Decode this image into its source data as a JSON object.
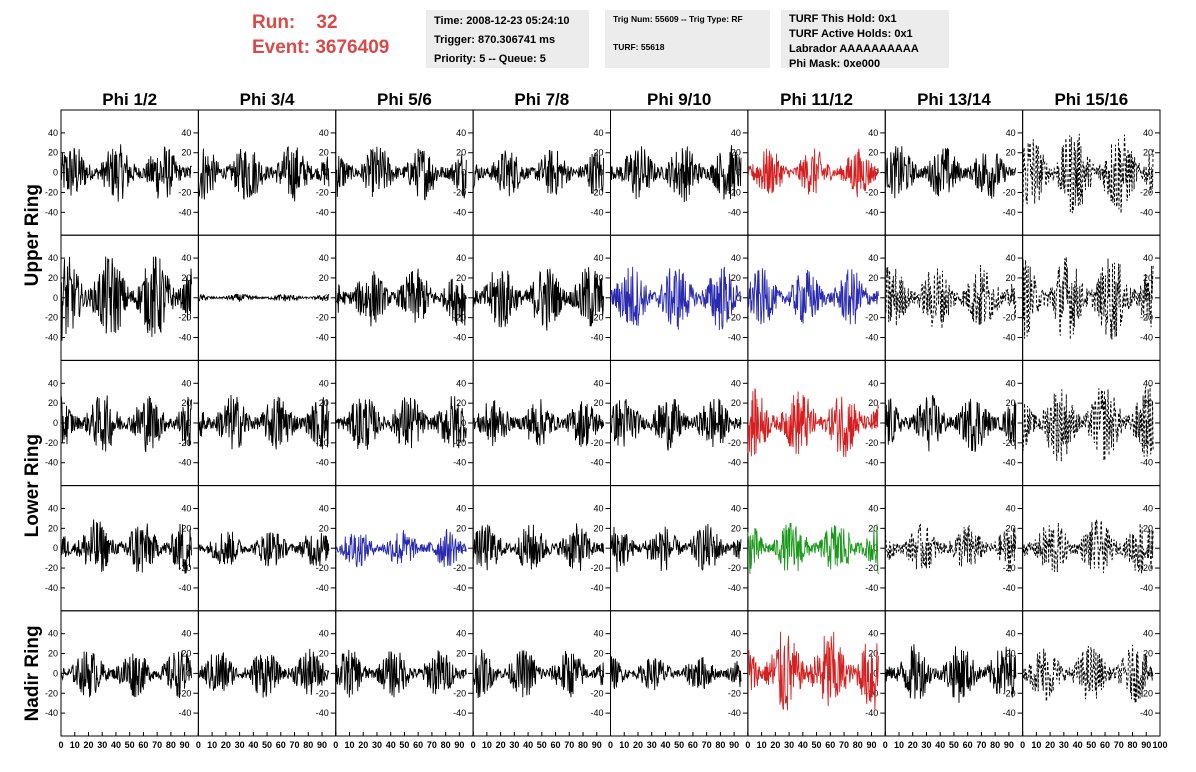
{
  "header": {
    "run_label": "Run:",
    "run_value": "32",
    "event_label": "Event:",
    "event_value": "3676409",
    "time_text": "Time: 2008-12-23 05:24:10",
    "trigger_text": "Trigger: 870.306741 ms",
    "priority_text": "Priority: 5 -- Queue: 5",
    "trig_num_text": "Trig Num: 55609 -- Trig Type: RF",
    "turf_text": "TURF: 55618",
    "turf_hold_text": "TURF This Hold: 0x1",
    "turf_active_text": "TURF Active Holds: 0x1",
    "labrador_text": "Labrador AAAAAAAAAA",
    "phi_mask_text": "Phi Mask: 0xe000"
  },
  "chart_data": {
    "type": "line",
    "columns": [
      "Phi 1/2",
      "Phi 3/4",
      "Phi 5/6",
      "Phi 7/8",
      "Phi 9/10",
      "Phi 11/12",
      "Phi 13/14",
      "Phi 15/16"
    ],
    "row_groups": [
      {
        "label": "Upper Ring",
        "rows": [
          0,
          1
        ]
      },
      {
        "label": "Lower Ring",
        "rows": [
          2,
          3
        ]
      },
      {
        "label": "Nadir Ring",
        "rows": [
          4
        ]
      }
    ],
    "xlim": [
      0,
      100
    ],
    "ylim": [
      -55,
      55
    ],
    "x_ticks": [
      0,
      10,
      20,
      30,
      40,
      50,
      60,
      70,
      80,
      90,
      100
    ],
    "x_ticks_left_col": [
      0,
      10,
      20,
      30,
      40,
      50,
      60,
      70,
      80,
      90,
      100
    ],
    "y_ticks": [
      40,
      20,
      0,
      -20,
      -40
    ],
    "colors": {
      "default": "#000000",
      "red": "#d42020",
      "blue": "#2a2ab0",
      "green": "#1a9a1a"
    },
    "panels": [
      [
        "black",
        "black",
        "black",
        "black",
        "black",
        "red",
        "black",
        "dashed"
      ],
      [
        "black",
        "flat",
        "black",
        "black",
        "blue",
        "blue",
        "dashed",
        "dashed"
      ],
      [
        "black",
        "black",
        "black",
        "black",
        "black",
        "red",
        "black",
        "dashed"
      ],
      [
        "black",
        "black",
        "blue",
        "black",
        "black",
        "green",
        "dashed",
        "dashed"
      ],
      [
        "black",
        "black",
        "black",
        "black",
        "black",
        "red",
        "black",
        "dashed"
      ]
    ],
    "amplitudes": [
      [
        30,
        30,
        28,
        25,
        30,
        25,
        28,
        45
      ],
      [
        45,
        4,
        30,
        35,
        35,
        30,
        35,
        45
      ],
      [
        30,
        30,
        30,
        25,
        28,
        35,
        30,
        40
      ],
      [
        30,
        20,
        20,
        25,
        25,
        28,
        25,
        30
      ],
      [
        25,
        25,
        25,
        25,
        18,
        45,
        30,
        30
      ]
    ]
  }
}
